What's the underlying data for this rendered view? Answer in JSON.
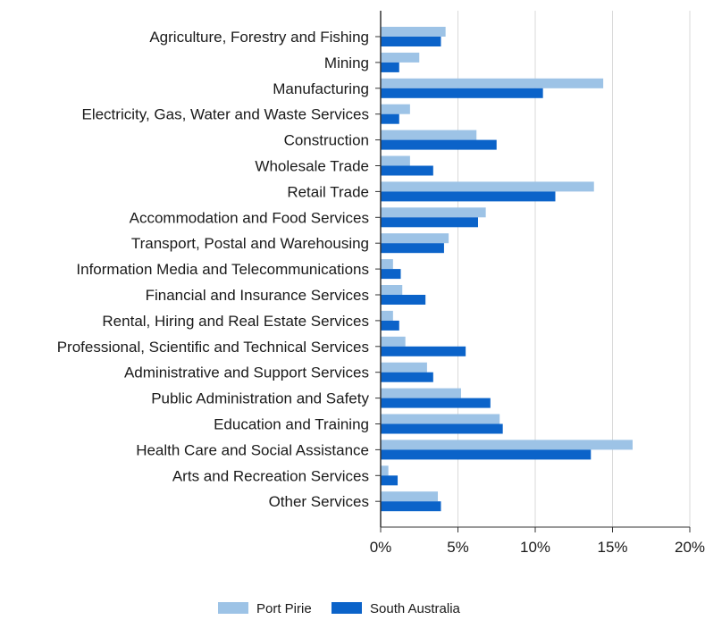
{
  "chart_data": {
    "type": "bar",
    "orientation": "horizontal",
    "categories": [
      "Agriculture, Forestry and Fishing",
      "Mining",
      "Manufacturing",
      "Electricity, Gas, Water and Waste Services",
      "Construction",
      "Wholesale Trade",
      "Retail Trade",
      "Accommodation and Food Services",
      "Transport, Postal and Warehousing",
      "Information Media and Telecommunications",
      "Financial and Insurance Services",
      "Rental, Hiring and Real Estate Services",
      "Professional, Scientific and Technical Services",
      "Administrative and Support Services",
      "Public Administration and Safety",
      "Education and Training",
      "Health Care and Social Assistance",
      "Arts and Recreation Services",
      "Other Services"
    ],
    "series": [
      {
        "name": "Port Pirie",
        "color": "#9dc3e6",
        "values": [
          4.2,
          2.5,
          14.4,
          1.9,
          6.2,
          1.9,
          13.8,
          6.8,
          4.4,
          0.8,
          1.4,
          0.8,
          1.6,
          3.0,
          5.2,
          7.7,
          16.3,
          0.5,
          3.7
        ]
      },
      {
        "name": "South Australia",
        "color": "#0b63c9",
        "values": [
          3.9,
          1.2,
          10.5,
          1.2,
          7.5,
          3.4,
          11.3,
          6.3,
          4.1,
          1.3,
          2.9,
          1.2,
          5.5,
          3.4,
          7.1,
          7.9,
          13.6,
          1.1,
          3.9
        ]
      }
    ],
    "xlim": [
      0,
      20
    ],
    "xticks": [
      "0%",
      "5%",
      "10%",
      "15%",
      "20%"
    ],
    "xlabel": "",
    "ylabel": "",
    "title": "",
    "grid": "vertical",
    "legend_position": "bottom-center"
  }
}
